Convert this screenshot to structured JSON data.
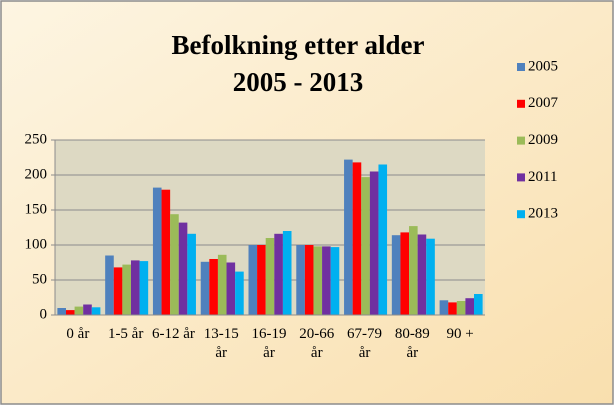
{
  "chart_data": {
    "type": "bar",
    "title": [
      "Befolkning etter alder",
      "2005 - 2013"
    ],
    "categories": [
      "0 år",
      "1-5 år",
      "6-12 år",
      "13-15 år",
      "16-19 år",
      "20-66 år",
      "67-79 år",
      "80-89 år",
      "90 +"
    ],
    "series": [
      {
        "name": "2005",
        "color": "#4f81bd",
        "values": [
          10,
          85,
          182,
          76,
          100,
          100,
          222,
          114,
          21
        ]
      },
      {
        "name": "2007",
        "color": "#ff0000",
        "values": [
          7,
          68,
          179,
          80,
          100,
          100,
          218,
          118,
          18
        ]
      },
      {
        "name": "2009",
        "color": "#9bbb59",
        "values": [
          12,
          72,
          144,
          86,
          110,
          98,
          197,
          127,
          20
        ]
      },
      {
        "name": "2011",
        "color": "#7030a0",
        "values": [
          15,
          78,
          132,
          75,
          116,
          98,
          205,
          115,
          24
        ]
      },
      {
        "name": "2013",
        "color": "#00b0f0",
        "values": [
          11,
          77,
          116,
          62,
          120,
          97,
          215,
          109,
          30
        ]
      }
    ],
    "ylim": [
      0,
      250
    ],
    "yticks": [
      0,
      50,
      100,
      150,
      200,
      250
    ],
    "grid": true,
    "legend": "right"
  }
}
